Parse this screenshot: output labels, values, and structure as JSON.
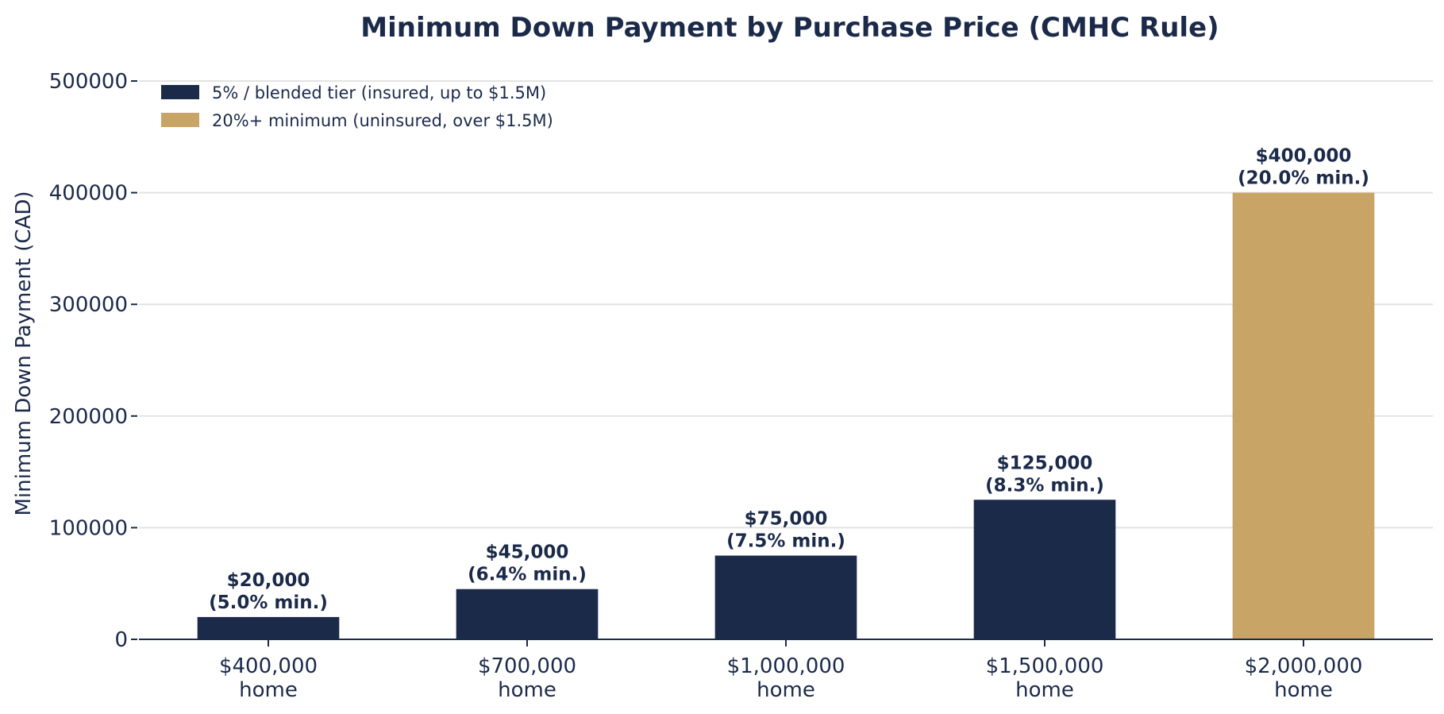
{
  "chart_data": {
    "type": "bar",
    "title": "Minimum Down Payment by Purchase Price (CMHC Rule)",
    "xlabel": "",
    "ylabel": "Minimum Down Payment (CAD)",
    "ylim": [
      0,
      500000
    ],
    "yticks": [
      0,
      100000,
      200000,
      300000,
      400000,
      500000
    ],
    "grid": "y",
    "legend_position": "top-left",
    "categories": [
      [
        "$400,000",
        "home"
      ],
      [
        "$700,000",
        "home"
      ],
      [
        "$1,000,000",
        "home"
      ],
      [
        "$1,500,000",
        "home"
      ],
      [
        "$2,000,000",
        "home"
      ]
    ],
    "values": [
      20000,
      45000,
      75000,
      125000,
      400000
    ],
    "value_labels": [
      [
        "$20,000",
        "(5.0% min.)"
      ],
      [
        "$45,000",
        "(6.4% min.)"
      ],
      [
        "$75,000",
        "(7.5% min.)"
      ],
      [
        "$125,000",
        "(8.3% min.)"
      ],
      [
        "$400,000",
        "(20.0% min.)"
      ]
    ],
    "series_index": [
      0,
      0,
      0,
      0,
      1
    ],
    "legend": [
      {
        "name": "5% / blended tier (insured, up to $1.5M)",
        "color": "#1c2a4a"
      },
      {
        "name": "20%+ minimum (uninsured, over $1.5M)",
        "color": "#c9a467"
      }
    ],
    "colors": {
      "text": "#1c2a4a",
      "grid": "#e3e3e3",
      "axis": "#1c2a4a"
    }
  }
}
